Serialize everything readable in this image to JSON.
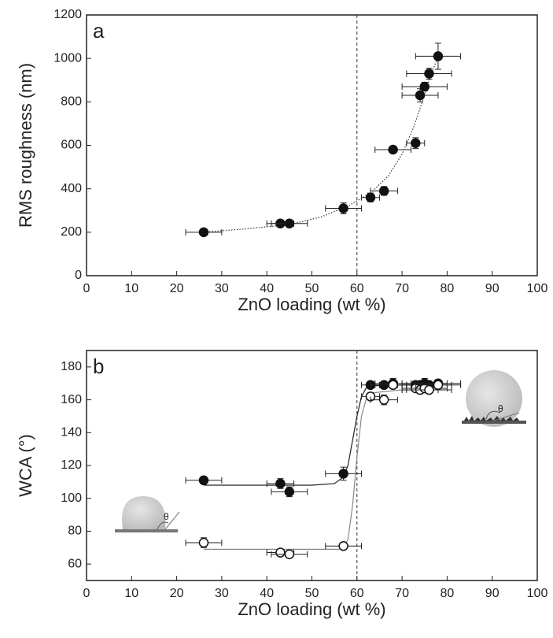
{
  "chart_data": [
    {
      "type": "scatter",
      "panel_label": "a",
      "x_label": "ZnO loading (wt %)",
      "y_label": "RMS roughness (nm)",
      "xlim": [
        0,
        100
      ],
      "xticks": [
        0,
        10,
        20,
        30,
        40,
        50,
        60,
        70,
        80,
        90,
        100
      ],
      "ylim": [
        0,
        1200
      ],
      "yticks": [
        0,
        200,
        400,
        600,
        800,
        1000,
        1200
      ],
      "vline": 60,
      "x": [
        26,
        43,
        45,
        57,
        63,
        66,
        68,
        73,
        74,
        75,
        76,
        78
      ],
      "xerr": [
        4,
        3,
        4,
        4,
        2,
        3,
        4,
        2,
        4,
        5,
        5,
        5
      ],
      "series": [
        {
          "color": "#111111",
          "marker": "filled",
          "values": [
            200,
            240,
            240,
            310,
            360,
            390,
            580,
            610,
            830,
            870,
            930,
            1010
          ],
          "yerr": [
            10,
            15,
            15,
            25,
            20,
            20,
            15,
            25,
            30,
            20,
            25,
            60
          ],
          "fit": {
            "style": "dotted",
            "x": [
              26,
              35,
              45,
              52,
              58,
              63,
              67,
              70,
              72.5,
              74.5,
              76,
              78
            ],
            "values": [
              200,
              215,
              235,
              270,
              320,
              380,
              460,
              560,
              680,
              800,
              900,
              1010
            ]
          }
        }
      ]
    },
    {
      "type": "scatter",
      "panel_label": "b",
      "x_label": "ZnO loading (wt %)",
      "y_label": "WCA (°)",
      "xlim": [
        0,
        100
      ],
      "xticks": [
        0,
        10,
        20,
        30,
        40,
        50,
        60,
        70,
        80,
        90,
        100
      ],
      "ylim": [
        50,
        190
      ],
      "yticks": [
        60,
        80,
        100,
        120,
        140,
        160,
        180
      ],
      "vline": 60,
      "inset_labels": [
        "θ",
        "θ"
      ],
      "x": [
        26,
        43,
        45,
        57,
        63,
        66,
        68,
        73,
        74,
        75,
        76,
        78
      ],
      "xerr": [
        4,
        3,
        4,
        4,
        2,
        3,
        4,
        2,
        4,
        5,
        5,
        5
      ],
      "series": [
        {
          "color": "#111111",
          "marker": "filled",
          "values": [
            111,
            109,
            104,
            115,
            169,
            169,
            170,
            169,
            169,
            170,
            169,
            170
          ],
          "yerr": [
            2,
            3,
            3,
            4,
            2,
            2,
            3,
            2,
            2,
            3,
            2,
            2
          ],
          "fit": {
            "style": "solid",
            "x": [
              26,
              40,
              50,
              55,
              57,
              58,
              59,
              60,
              61,
              62,
              63,
              70,
              78
            ],
            "values": [
              108,
              108,
              108,
              109,
              113,
              120,
              135,
              150,
              162,
              167,
              168.5,
              169,
              169
            ]
          }
        },
        {
          "color": "#111111",
          "marker": "open",
          "values": [
            73,
            67,
            66,
            71,
            162,
            160,
            169,
            167,
            166,
            167,
            166,
            169
          ],
          "yerr": [
            3,
            2,
            2,
            2,
            2,
            3,
            2,
            2,
            2,
            2,
            2,
            2
          ],
          "fit": {
            "style": "solid",
            "x": [
              26,
              50,
              56,
              57,
              58,
              59,
              60,
              61,
              62,
              63,
              66,
              70,
              78
            ],
            "values": [
              69,
              69,
              69,
              70,
              75,
              95,
              125,
              150,
              160,
              164,
              165,
              166,
              166
            ]
          }
        }
      ]
    }
  ]
}
